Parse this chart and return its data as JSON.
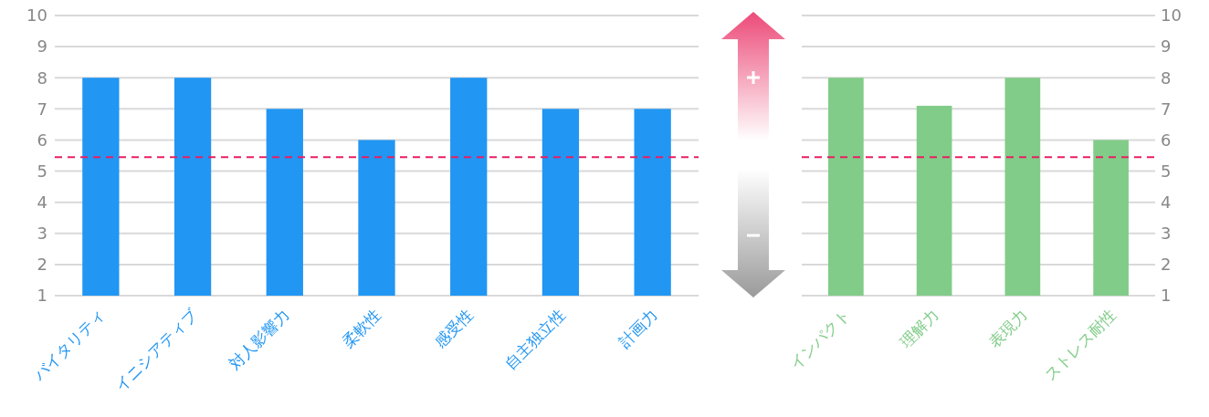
{
  "chart_data": [
    {
      "type": "bar",
      "categories": [
        "バイタリティ",
        "イニシアティブ",
        "対人影響力",
        "柔軟性",
        "感受性",
        "自主独立性",
        "計画力"
      ],
      "series": [
        {
          "color": "#2196f3",
          "values": [
            8,
            8,
            7,
            6,
            8,
            7,
            7
          ]
        }
      ],
      "ylim": [
        1,
        10
      ],
      "yticks": [
        1,
        2,
        3,
        4,
        5,
        6,
        7,
        8,
        9,
        10
      ],
      "grid": "y",
      "ref_lines": [
        {
          "axis": "y",
          "value": 5.45,
          "color": "#e91e63",
          "line_style": "dashed"
        }
      ]
    },
    {
      "type": "bar",
      "categories": [
        "インパクト",
        "理解力",
        "表現力",
        "ストレス耐性"
      ],
      "series": [
        {
          "color": "#81cc88",
          "values": [
            8,
            7.1,
            8,
            6
          ],
          "axis": "y2"
        }
      ],
      "y2lim": [
        1,
        10
      ],
      "y2ticks": [
        1,
        2,
        3,
        4,
        5,
        6,
        7,
        8,
        9,
        10
      ],
      "grid": "y",
      "ref_lines": [
        {
          "axis": "y2",
          "value": 5.45,
          "color": "#e91e63",
          "line_style": "dashed"
        }
      ]
    }
  ]
}
